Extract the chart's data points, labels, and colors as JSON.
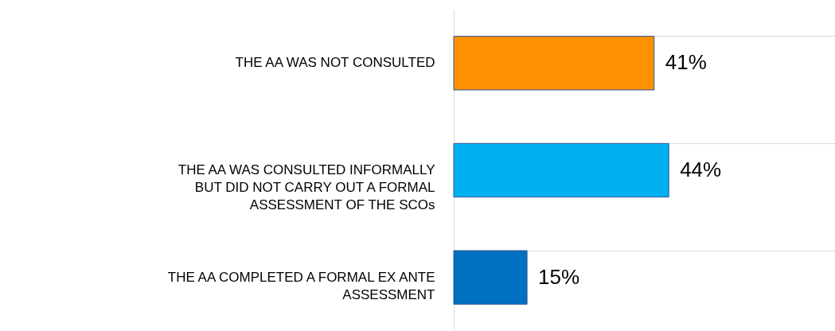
{
  "chart_data": {
    "type": "bar",
    "orientation": "horizontal",
    "categories": [
      "THE AA WAS NOT CONSULTED",
      "THE AA WAS CONSULTED INFORMALLY BUT DID NOT CARRY OUT A FORMAL ASSESSMENT OF THE SCOs",
      "THE AA COMPLETED A FORMAL EX ANTE ASSESSMENT"
    ],
    "values": [
      41,
      44,
      15
    ],
    "value_labels": [
      "41%",
      "44%",
      "15%"
    ],
    "colors": [
      "#ff9100",
      "#00b0f0",
      "#0070c0"
    ],
    "grid": "y"
  }
}
